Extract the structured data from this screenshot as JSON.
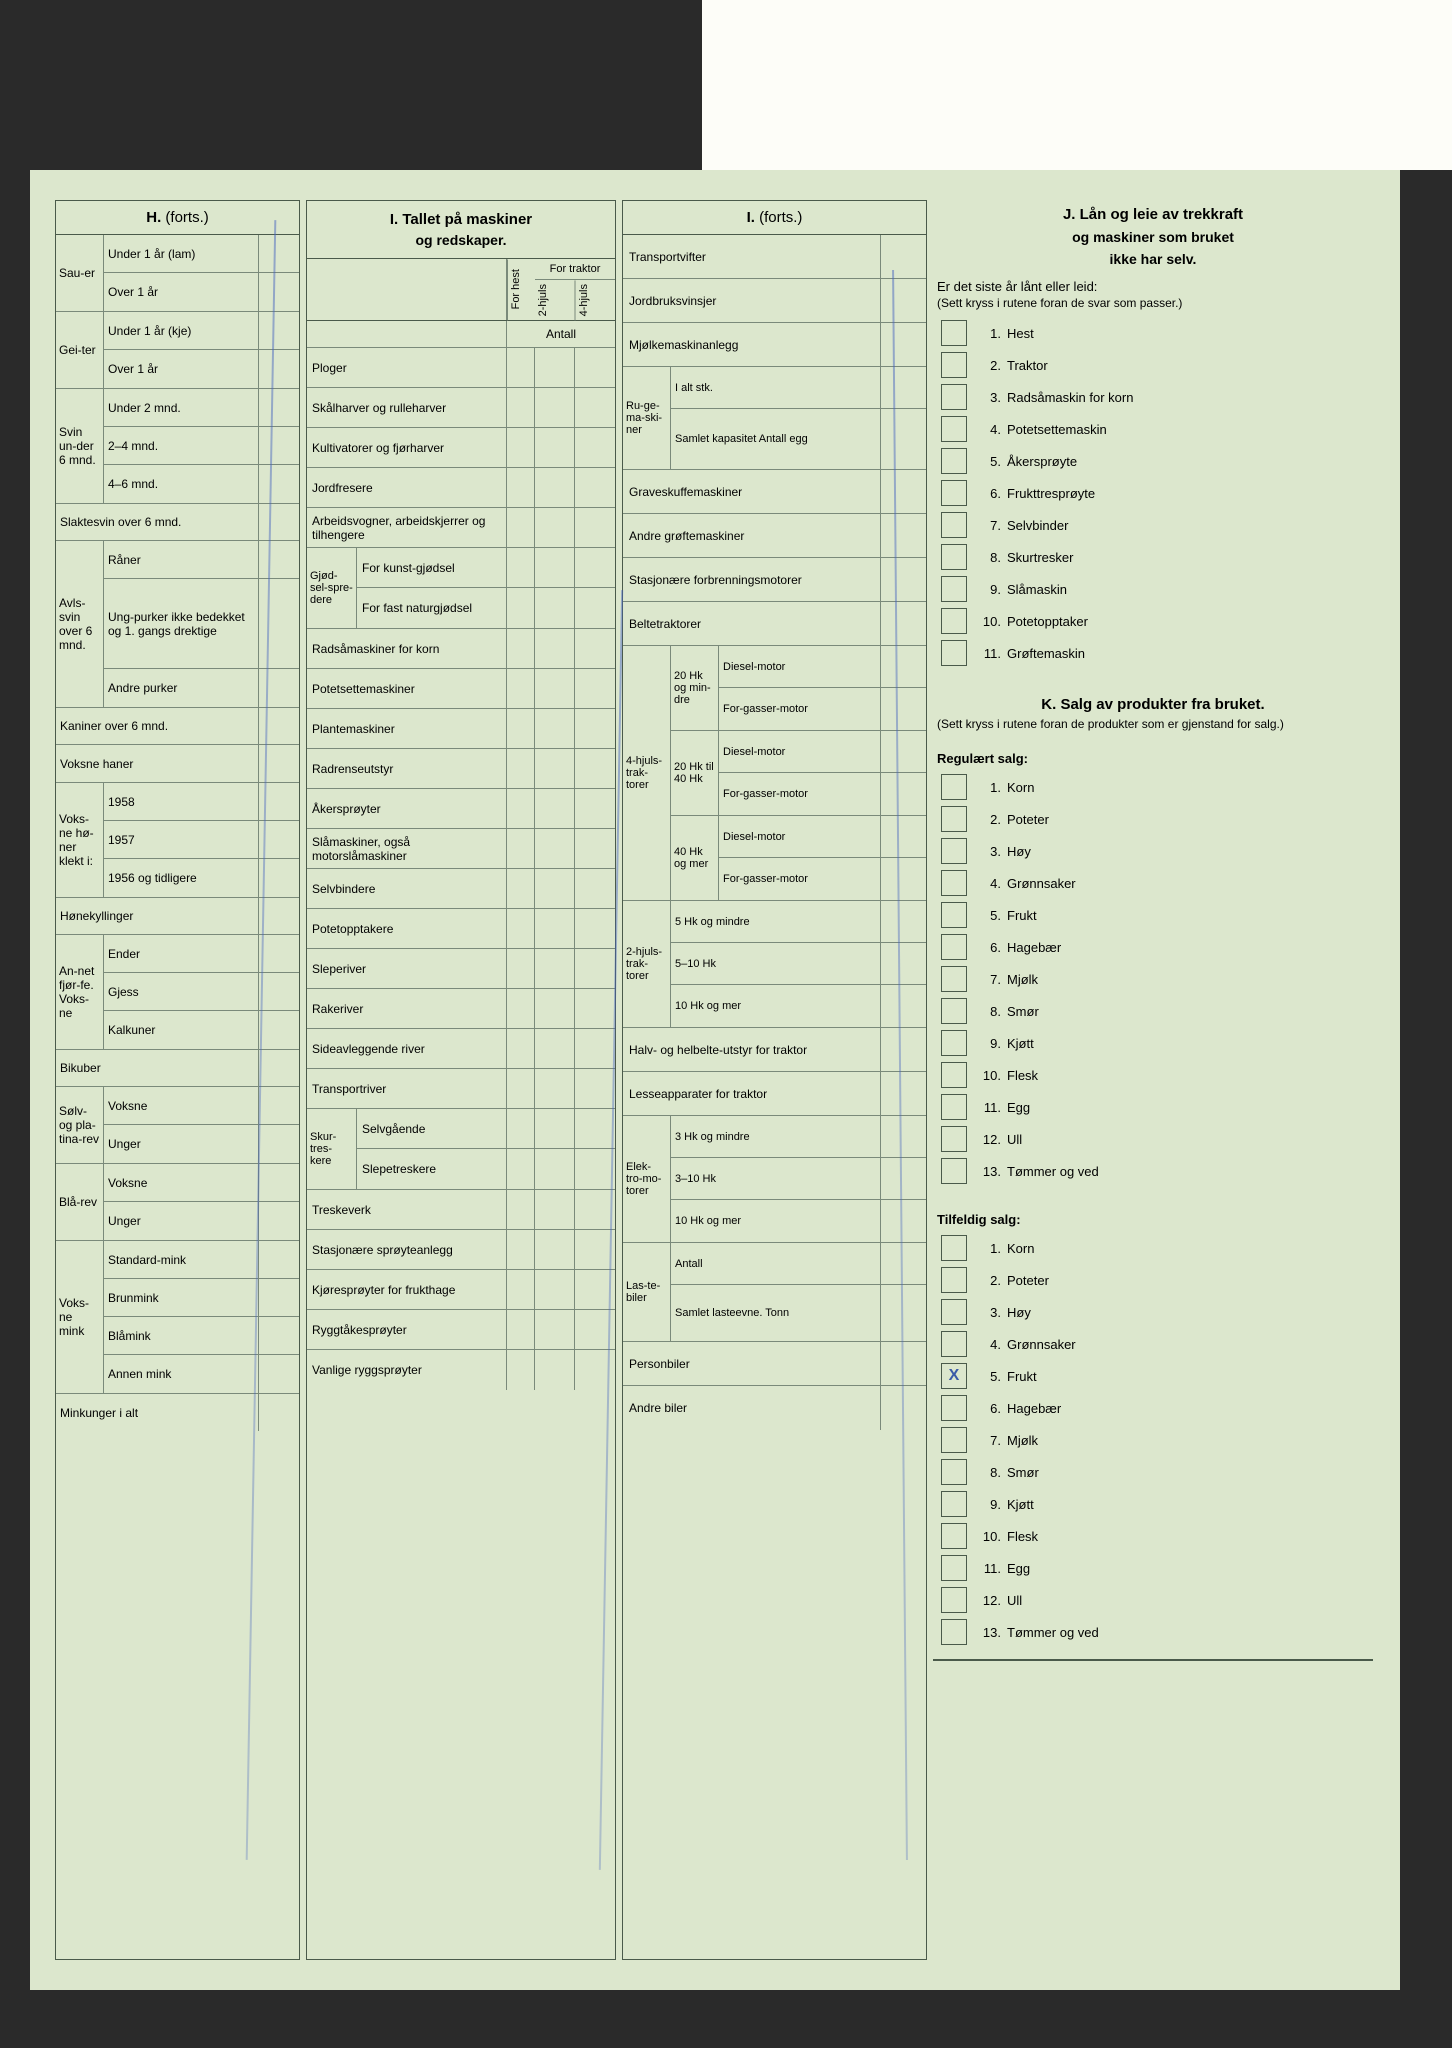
{
  "colors": {
    "page_bg": "#dce7cd",
    "border": "#4a5a4a",
    "border_light": "#7a8a7a",
    "pen": "#3a5aa8"
  },
  "H": {
    "title": "H.",
    "title_suffix": "(forts.)",
    "sauer": {
      "label": "Sau-er",
      "r1": "Under 1 år (lam)",
      "r2": "Over 1 år"
    },
    "geiter": {
      "label": "Gei-ter",
      "r1": "Under 1 år (kje)",
      "r2": "Over 1 år"
    },
    "svin": {
      "label": "Svin un-der 6 mnd.",
      "r1": "Under 2 mnd.",
      "r2": "2–4 mnd.",
      "r3": "4–6 mnd."
    },
    "slaktesvin": "Slaktesvin over 6 mnd.",
    "avlssvin": {
      "label": "Avls-svin over 6 mnd.",
      "r1": "Råner",
      "r2": "Ung-purker ikke bedekket og 1. gangs drektige",
      "r3": "Andre purker"
    },
    "kaniner": "Kaniner over 6 mnd.",
    "haner": "Voksne haner",
    "honer": {
      "label": "Voks-ne hø-ner klekt i:",
      "r1": "1958",
      "r2": "1957",
      "r3": "1956 og tidligere"
    },
    "honekyllinger": "Hønekyllinger",
    "fjorfe": {
      "label": "An-net fjør-fe. Voks-ne",
      "r1": "Ender",
      "r2": "Gjess",
      "r3": "Kalkuner"
    },
    "bikuber": "Bikuber",
    "solvrev": {
      "label": "Sølv- og pla-tina-rev",
      "r1": "Voksne",
      "r2": "Unger"
    },
    "blarev": {
      "label": "Blå-rev",
      "r1": "Voksne",
      "r2": "Unger"
    },
    "mink": {
      "label": "Voks-ne mink",
      "r1": "Standard-mink",
      "r2": "Brunmink",
      "r3": "Blåmink",
      "r4": "Annen mink"
    },
    "minkunger": "Minkunger i alt"
  },
  "I": {
    "title": "I. Tallet på maskiner",
    "subtitle": "og redskaper.",
    "hest": "For hest",
    "traktor": "For traktor",
    "hjuls2": "2-hjuls",
    "hjuls4": "4-hjuls",
    "antall": "Antall",
    "items": [
      "Ploger",
      "Skålharver og rulleharver",
      "Kultivatorer og fjørharver",
      "Jordfresere",
      "Arbeidsvogner, arbeidskjerrer og tilhengere"
    ],
    "gjodsel": {
      "label": "Gjød-sel-spre-dere",
      "r1": "For kunst-gjødsel",
      "r2": "For fast naturgjødsel"
    },
    "items2": [
      "Radsåmaskiner for korn",
      "Potetsettemaskiner",
      "Plantemaskiner",
      "Radrenseutstyr",
      "Åkersprøyter",
      "Slåmaskiner, også motorslåmaskiner",
      "Selvbindere",
      "Potetopptakere",
      "Sleperiver",
      "Rakeriver",
      "Sideavleggende river",
      "Transportriver"
    ],
    "skur": {
      "label": "Skur-tres-kere",
      "r1": "Selvgående",
      "r2": "Slepetreskere"
    },
    "items3": [
      "Treskeverk",
      "Stasjonære sprøyteanlegg",
      "Kjøresprøyter for frukthage",
      "Ryggtåkesprøyter",
      "Vanlige ryggsprøyter"
    ]
  },
  "I2": {
    "title": "I.",
    "title_suffix": "(forts.)",
    "items1": [
      "Transportvifter",
      "Jordbruksvinsjer",
      "Mjølkemaskinanlegg"
    ],
    "ruge": {
      "label": "Ru-ge-ma-ski-ner",
      "r1": "I alt stk.",
      "r2": "Samlet kapasitet Antall egg"
    },
    "items2": [
      "Graveskuffemaskiner",
      "Andre grøftemaskiner",
      "Stasjonære forbrenningsmotorer",
      "Beltetraktorer"
    ],
    "trak4": {
      "label": "4-hjuls-trak-torer",
      "g1": {
        "l": "20 Hk og min-dre",
        "r1": "Diesel-motor",
        "r2": "For-gasser-motor"
      },
      "g2": {
        "l": "20 Hk til 40 Hk",
        "r1": "Diesel-motor",
        "r2": "For-gasser-motor"
      },
      "g3": {
        "l": "40 Hk og mer",
        "r1": "Diesel-motor",
        "r2": "For-gasser-motor"
      }
    },
    "trak2": {
      "label": "2-hjuls-trak-torer",
      "r1": "5 Hk og mindre",
      "r2": "5–10 Hk",
      "r3": "10 Hk og mer"
    },
    "items3": [
      "Halv- og helbelte-utstyr for traktor",
      "Lesseapparater for traktor"
    ],
    "elektro": {
      "label": "Elek-tro-mo-torer",
      "r1": "3 Hk og mindre",
      "r2": "3–10 Hk",
      "r3": "10 Hk og mer"
    },
    "laste": {
      "label": "Las-te-biler",
      "r1": "Antall",
      "r2": "Samlet lasteevne. Tonn"
    },
    "items4": [
      "Personbiler",
      "Andre biler"
    ]
  },
  "J": {
    "title": "J. Lån og leie av trekkraft",
    "sub1": "og maskiner som bruket",
    "sub2": "ikke har selv.",
    "intro": "Er det siste år lånt eller leid:",
    "note": "(Sett kryss i rutene foran de svar som passer.)",
    "items": [
      "Hest",
      "Traktor",
      "Radsåmaskin for korn",
      "Potetsettemaskin",
      "Åkersprøyte",
      "Frukttresprøyte",
      "Selvbinder",
      "Skurtresker",
      "Slåmaskin",
      "Potetopptaker",
      "Grøftemaskin"
    ]
  },
  "K": {
    "title": "K. Salg av produkter fra bruket.",
    "note": "(Sett kryss i rutene foran de produkter som er gjenstand for salg.)",
    "reg_title": "Regulært salg:",
    "reg_items": [
      "Korn",
      "Poteter",
      "Høy",
      "Grønnsaker",
      "Frukt",
      "Hagebær",
      "Mjølk",
      "Smør",
      "Kjøtt",
      "Flesk",
      "Egg",
      "Ull",
      "Tømmer og ved"
    ],
    "tilf_title": "Tilfeldig salg:",
    "tilf_items": [
      "Korn",
      "Poteter",
      "Høy",
      "Grønnsaker",
      "Frukt",
      "Hagebær",
      "Mjølk",
      "Smør",
      "Kjøtt",
      "Flesk",
      "Egg",
      "Ull",
      "Tømmer og ved"
    ],
    "tilf_marked_index": 4,
    "tilf_mark": "X"
  }
}
